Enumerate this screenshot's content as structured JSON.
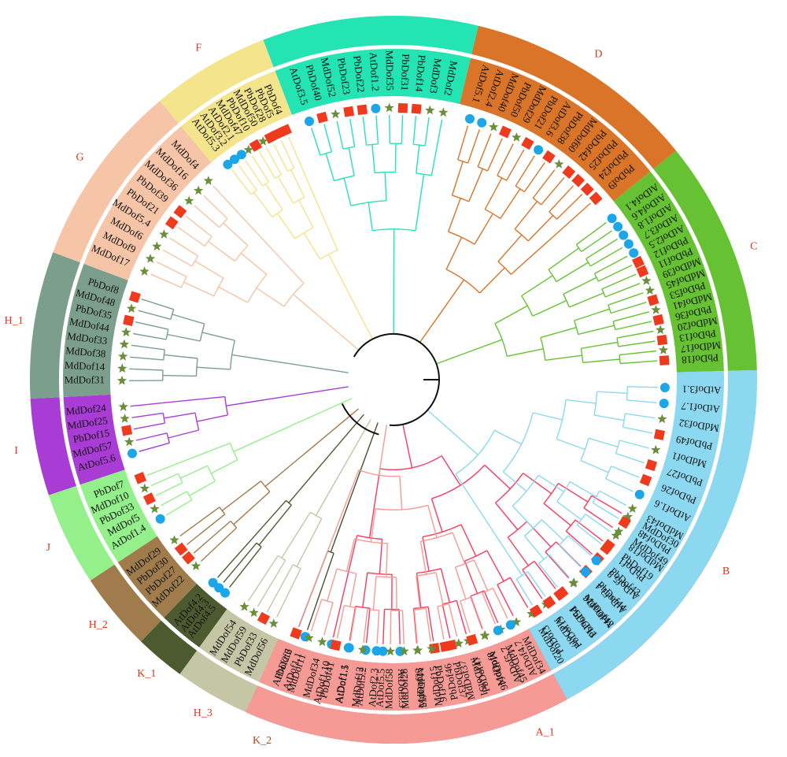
{
  "clades": [
    {
      "id": "A_1",
      "color": "#fb3a5e",
      "leaves": [
        "MdDof30",
        "MdDof49",
        "PbDof19",
        "PbDof43",
        "PbDof44",
        "MdDof42",
        "PbDof13",
        "MdDof7",
        "MdDof20",
        "MdDof34",
        "MdDof45",
        "MdDof46",
        "MdDof51",
        "PbDof37",
        "PbDof16",
        "MdDof55",
        "AtDof3.3",
        "AtDof5.5",
        "AtDof5.2",
        "AtDof1.1",
        "AtDof1.10"
      ]
    },
    {
      "id": "K_2",
      "color": "#4a4f32",
      "leaves": [
        "AtDof1.1",
        "AtDof2.2"
      ]
    },
    {
      "id": "H_3",
      "color": "#c4c6a6",
      "leaves": [
        "MdDof56",
        "PbDof33",
        "MdDof59",
        "MdDof54"
      ]
    },
    {
      "id": "K_1",
      "color": "#4d5a30",
      "leaves": [
        "AtDof4.5",
        "AtDof4.3",
        "AtDof4.2"
      ]
    },
    {
      "id": "H_2",
      "color": "#a07c4c",
      "leaves": [
        "MdDof22",
        "PbDof27",
        "PbDof30",
        "MdDof29"
      ]
    },
    {
      "id": "J",
      "color": "#93f08a",
      "leaves": [
        "AtDof1.4",
        "MdDof5",
        "PbDof33",
        "MdDof10",
        "PbDof7"
      ]
    },
    {
      "id": "I",
      "color": "#a83cd4",
      "leaves": [
        "AtDof5.6",
        "MdDof57",
        "PbDof15",
        "MdDof25",
        "MdDof24"
      ]
    },
    {
      "id": "H_1",
      "color": "#7c9e8c",
      "leaves": [
        "MdDof31",
        "MdDof14",
        "MdDof38",
        "MdDof33",
        "MdDof44",
        "PbDof35",
        "MdDof48",
        "PbDof8"
      ]
    },
    {
      "id": "G",
      "color": "#f6c4a6",
      "leaves": [
        "MdDof17",
        "MdDof9",
        "MdDof6",
        "MdDof5.4",
        "PbDof21",
        "PbDof39",
        "MdDof36",
        "MdDof16",
        "MdDof4"
      ]
    },
    {
      "id": "F",
      "color": "#f4e48c",
      "leaves": [
        "AtDof5.3",
        "AtDof3.2",
        "AtDof2.1",
        "MdDof47",
        "PbDof10",
        "MdDof50",
        "PbDof28",
        "PbDof5",
        "PbDof4"
      ]
    },
    {
      "id": "E",
      "color": "#24e4b4",
      "leaves": [
        "AtDof3.5",
        "PbDof40",
        "MdDof52",
        "PbDof23",
        "PbDof22",
        "AtDof1.2",
        "MdDof35",
        "PbDof31",
        "PbDof14",
        "MdDof3",
        "MdDof2"
      ]
    },
    {
      "id": "D",
      "color": "#d97428",
      "leaves": [
        "AtDof5.1",
        "AtDof2.4",
        "MdDof40",
        "PbDof50",
        "MdDof29",
        "PbDof21",
        "AtDof3.6",
        "PbDof38",
        "MdDof60",
        "PbDof42",
        "PbDof25",
        "PbDof24",
        "PbDof9"
      ]
    },
    {
      "id": "C",
      "color": "#66c232",
      "leaves": [
        "AtDof4.1",
        "AtDof4.6",
        "AtDof1.8",
        "AtDof3.7",
        "AtDof2.5",
        "PbDof12",
        "PbDof11",
        "MdDof39",
        "MdDof45",
        "PbDof53",
        "MdDof41",
        "PbDof36",
        "MdDof20",
        "PbDof13",
        "MdDof17",
        "PbDof18"
      ]
    },
    {
      "id": "B",
      "color": "#8cd8f0",
      "leaves": [
        "AtDof3.1",
        "AtDof1.7",
        "MdDof32",
        "PbDof49",
        "MdDof1",
        "PbDof27",
        "PbDof26",
        "AtDof1.6",
        "MdDof43",
        "PbDof48",
        "MdDof18",
        "PbDof1",
        "AtDof5.8",
        "AtDof3.4",
        "MdDof26",
        "PbDof51",
        "PbDof19",
        "PbDof3"
      ]
    },
    {
      "id": "A_2",
      "color": "#f59a94",
      "leaves": [
        "AtDof4.7",
        "AtDof5.7",
        "MdDof8",
        "PbDof47",
        "MdDof37",
        "PbDof46",
        "MdDof15",
        "MdDof23",
        "MdDof28",
        "MdDof58",
        "AtDof2.3",
        "MdDof12",
        "AtDof1.5",
        "PbDof41",
        "MdDof34",
        "MdDof11",
        "PbDof6"
      ]
    }
  ]
}
